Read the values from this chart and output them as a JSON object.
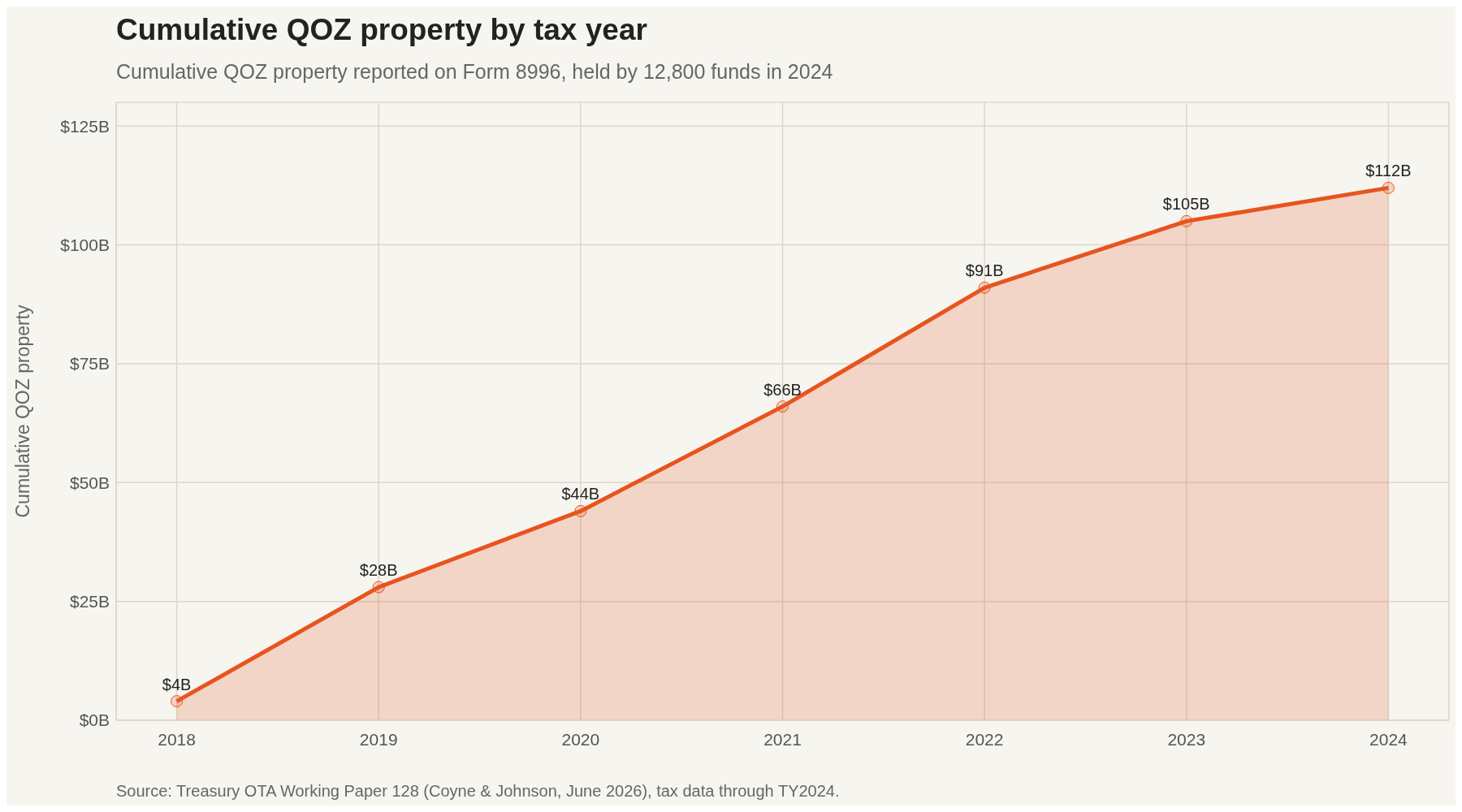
{
  "chart_data": {
    "type": "area",
    "title": "Cumulative QOZ property by tax year",
    "subtitle": "Cumulative QOZ property reported on Form 8996, held by 12,800 funds in 2024",
    "ylabel": "Cumulative QOZ property",
    "annotations": [
      "Source: Treasury OTA Working Paper 128 (Coyne & Johnson, June 2026), tax data through TY2024."
    ],
    "categories": [
      "2018",
      "2019",
      "2020",
      "2021",
      "2022",
      "2023",
      "2024"
    ],
    "series": [
      {
        "color": "#e8541e",
        "values": [
          4,
          28,
          44,
          66,
          91,
          105,
          112
        ],
        "value_labels": [
          "$4B",
          "$28B",
          "$44B",
          "$66B",
          "$91B",
          "$105B",
          "$112B"
        ]
      }
    ],
    "ylim": [
      0,
      130
    ],
    "yticks": [
      {
        "value": 0,
        "label": "$0B"
      },
      {
        "value": 25,
        "label": "$25B"
      },
      {
        "value": 50,
        "label": "$50B"
      },
      {
        "value": 75,
        "label": "$75B"
      },
      {
        "value": 100,
        "label": "$100B"
      },
      {
        "value": 125,
        "label": "$125B"
      }
    ],
    "grid": true,
    "marker": "circle"
  }
}
